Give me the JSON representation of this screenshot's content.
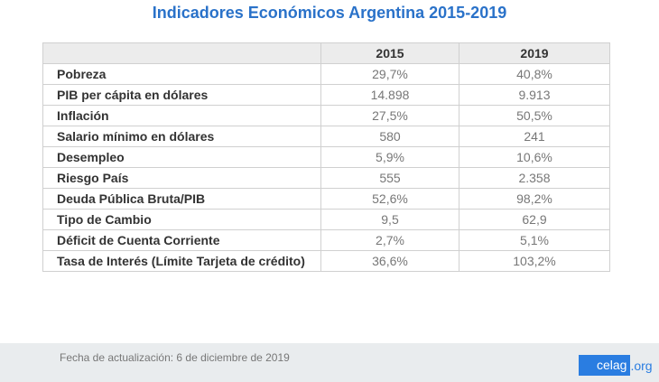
{
  "title": "Indicadores Económicos Argentina 2015-2019",
  "table": {
    "headers": [
      "",
      "2015",
      "2019"
    ],
    "rows": [
      [
        "Pobreza",
        "29,7%",
        "40,8%"
      ],
      [
        "PIB per cápita en dólares",
        "14.898",
        "9.913"
      ],
      [
        "Inflación",
        "27,5%",
        "50,5%"
      ],
      [
        "Salario mínimo en dólares",
        "580",
        "241"
      ],
      [
        "Desempleo",
        "5,9%",
        "10,6%"
      ],
      [
        "Riesgo País",
        "555",
        "2.358"
      ],
      [
        "Deuda Pública Bruta/PIB",
        "52,6%",
        "98,2%"
      ],
      [
        "Tipo de Cambio",
        "9,5",
        "62,9"
      ],
      [
        "Déficit de Cuenta Corriente",
        "2,7%",
        "5,1%"
      ],
      [
        "Tasa de Interés (Límite Tarjeta de crédito)",
        "36,6%",
        "103,2%"
      ]
    ]
  },
  "footer": {
    "date": "Fecha de actualización: 6 de diciembre de 2019",
    "logo_main": "celag",
    "logo_suffix": ".org"
  }
}
